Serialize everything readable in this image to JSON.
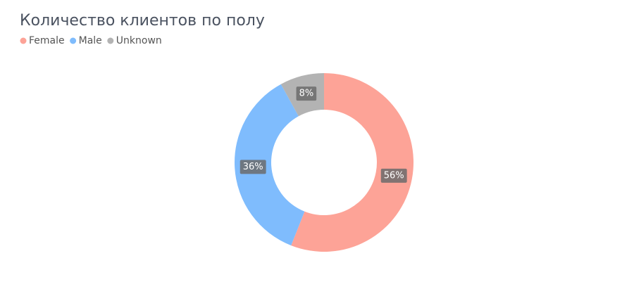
{
  "chart_data": {
    "type": "donut",
    "title": "Количество клиентов по полу",
    "categories": [
      "Female",
      "Male",
      "Unknown"
    ],
    "values": [
      56,
      36,
      8
    ],
    "value_labels": [
      "56%",
      "36%",
      "8%"
    ],
    "colors": [
      "#fda397",
      "#7fbcfd",
      "#b3b3b3"
    ],
    "legend": "top-left"
  }
}
